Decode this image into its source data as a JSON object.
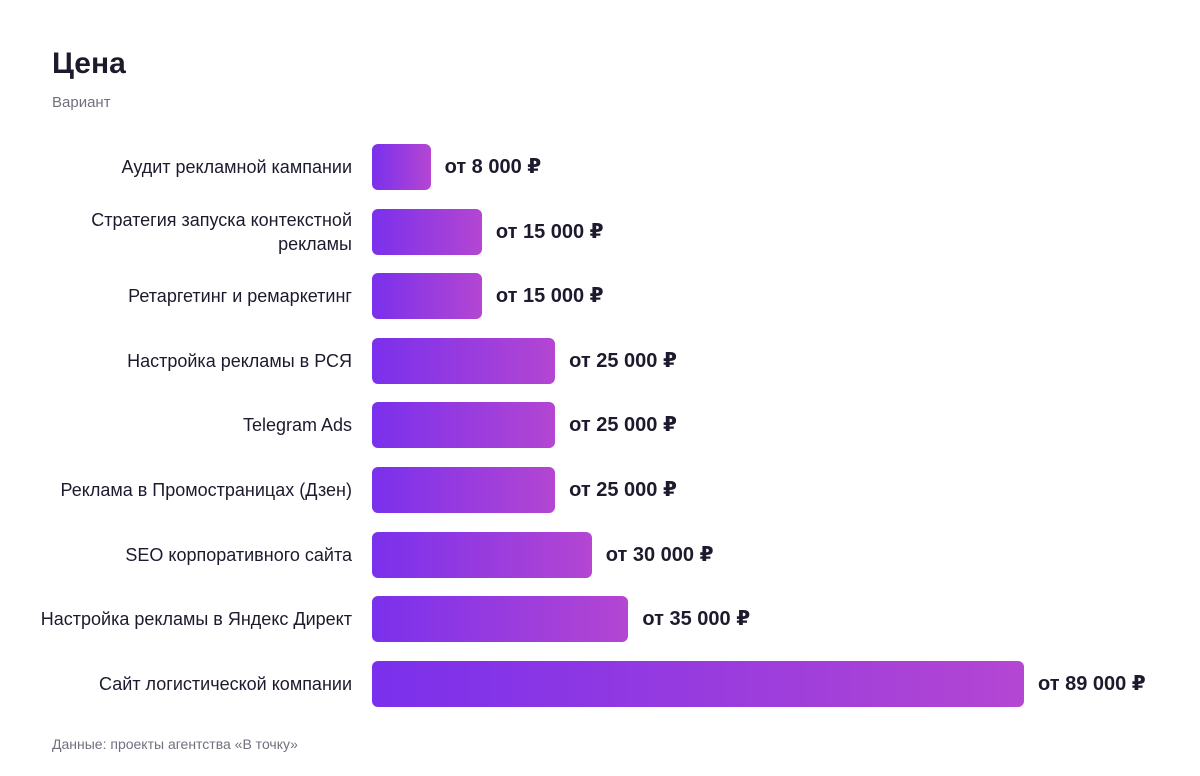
{
  "header": {
    "title": "Цена",
    "subtitle": "Вариант"
  },
  "footer": {
    "source": "Данные: проекты агентства «В точку»"
  },
  "colors": {
    "bar_gradient_start": "#7a30ec",
    "bar_gradient_end": "#b446d2",
    "text": "#1c1b2e",
    "muted_text": "#70717e"
  },
  "chart_data": {
    "type": "bar",
    "orientation": "horizontal",
    "title": "Цена",
    "subtitle": "Вариант",
    "categories": [
      "Аудит рекламной кампании",
      "Стратегия запуска контекстной рекламы",
      "Ретаргетинг и ремаркетинг",
      "Настройка рекламы в РСЯ",
      "Telegram Ads",
      "Реклама в Промостраницах (Дзен)",
      "SEO корпоративного сайта",
      "Настройка рекламы в Яндекс Директ",
      "Сайт логистической компании"
    ],
    "values": [
      8000,
      15000,
      15000,
      25000,
      25000,
      25000,
      30000,
      35000,
      89000
    ],
    "value_labels": [
      "от 8 000 ₽",
      "от 15 000 ₽",
      "от 15 000 ₽",
      "от 25 000 ₽",
      "от 25 000 ₽",
      "от 25 000 ₽",
      "от 30 000 ₽",
      "от 35 000 ₽",
      "от 89 000 ₽"
    ],
    "xlim": [
      0,
      89000
    ],
    "grid": false,
    "legend": "none"
  }
}
